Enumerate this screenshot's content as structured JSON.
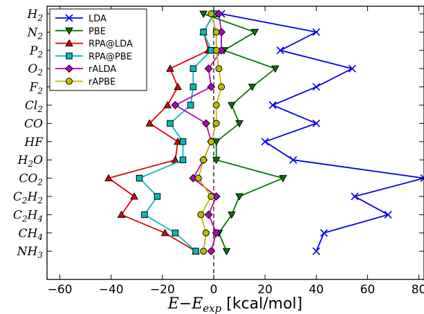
{
  "chart_data": {
    "type": "line",
    "orientation": "horizontal",
    "xlabel": "E−E_exp [kcal/mol]",
    "xlim": [
      -65,
      82
    ],
    "xticks": [
      -60,
      -40,
      -20,
      0,
      20,
      40,
      60,
      80
    ],
    "reference_line": 0,
    "grid": false,
    "legend_position": "top-left",
    "categories": [
      "H2",
      "N2",
      "P2",
      "O2",
      "F2",
      "Cl2",
      "CO",
      "HF",
      "H2O",
      "CO2",
      "C2H2",
      "C2H4",
      "CH4",
      "NH3"
    ],
    "category_labels": [
      {
        "base": "H",
        "sub": "2"
      },
      {
        "base": "N",
        "sub": "2"
      },
      {
        "base": "P",
        "sub": "2"
      },
      {
        "base": "O",
        "sub": "2"
      },
      {
        "base": "F",
        "sub": "2"
      },
      {
        "base": "Cl",
        "sub": "2"
      },
      {
        "base": "CO",
        "sub": ""
      },
      {
        "base": "HF",
        "sub": ""
      },
      {
        "base": "H",
        "sub": "2",
        "base2": "O"
      },
      {
        "base": "CO",
        "sub": "2"
      },
      {
        "base": "C",
        "sub": "2",
        "base2": "H",
        "sub2": "2"
      },
      {
        "base": "C",
        "sub": "2",
        "base2": "H",
        "sub2": "4"
      },
      {
        "base": "CH",
        "sub": "4"
      },
      {
        "base": "NH",
        "sub": "3"
      }
    ],
    "series": [
      {
        "name": "LDA",
        "color": "#0000ee",
        "marker": "x",
        "values": [
          3,
          40,
          26,
          54,
          40,
          23,
          40,
          20,
          31,
          82,
          55,
          68,
          43,
          40
        ]
      },
      {
        "name": "PBE",
        "color": "#007700",
        "marker": "triangle-down",
        "values": [
          -4,
          16,
          4,
          24,
          15,
          7,
          10,
          1,
          1,
          27,
          10,
          7,
          2,
          5
        ]
      },
      {
        "name": "RPA@LDA",
        "color": "#dd0000",
        "marker": "triangle-up",
        "values": [
          0,
          -4,
          -2,
          -17,
          -14,
          -18,
          -25,
          -14,
          -15,
          -41,
          -31,
          -36,
          -19,
          -7
        ]
      },
      {
        "name": "RPA@PBE",
        "color": "#00bbbb",
        "marker": "square",
        "values": [
          0,
          -4,
          -1,
          -8,
          -8,
          -9,
          -17,
          -12,
          -12,
          -29,
          -22,
          -27,
          -15,
          -7
        ]
      },
      {
        "name": "rALDA",
        "color": "#bb00bb",
        "marker": "diamond",
        "values": [
          2,
          3,
          3,
          -2,
          -1,
          -15,
          -3,
          -1,
          -4,
          -8,
          1,
          -2,
          1,
          -1
        ]
      },
      {
        "name": "rAPBE",
        "color": "#bbbb00",
        "marker": "circle",
        "values": [
          -1,
          1,
          1,
          2,
          3,
          1,
          1,
          -1,
          -4,
          -6,
          -1,
          -5,
          -3,
          -4
        ]
      }
    ]
  }
}
